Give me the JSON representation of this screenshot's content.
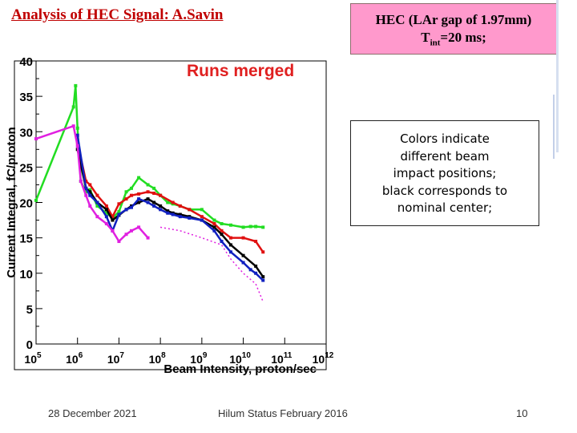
{
  "slide": {
    "title": "Analysis of HEC  Signal: A.Savin",
    "hec_box": {
      "line1": "HEC (LAr gap of 1.97mm)",
      "tint_base": "T",
      "tint_sub": "int",
      "tint_rest": "=20 ms;"
    },
    "note_lines": [
      "Colors indicate",
      "different beam",
      "impact positions;",
      "black corresponds to",
      "nominal center;"
    ],
    "footer": {
      "date": "28 December 2021",
      "center": "Hilum Status February 2016",
      "page": "10"
    }
  },
  "chart_data": {
    "type": "line",
    "title": "Runs merged",
    "xlabel": "Beam Intensity, proton/sec",
    "ylabel": "Current Integral, fC/proton",
    "xscale": "log",
    "xlim": [
      100000,
      1000000000000
    ],
    "ylim": [
      0,
      40
    ],
    "yticks": [
      0,
      5,
      10,
      15,
      20,
      25,
      30,
      35,
      40
    ],
    "xticks": [
      {
        "base": "10",
        "exp": "5",
        "value": 100000
      },
      {
        "base": "10",
        "exp": "6",
        "value": 1000000
      },
      {
        "base": "10",
        "exp": "7",
        "value": 10000000
      },
      {
        "base": "10",
        "exp": "8",
        "value": 100000000
      },
      {
        "base": "10",
        "exp": "9",
        "value": 1000000000
      },
      {
        "base": "10",
        "exp": "10",
        "value": 10000000000
      },
      {
        "base": "10",
        "exp": "11",
        "value": 100000000000
      },
      {
        "base": "10",
        "exp": "12",
        "value": 1000000000000
      }
    ],
    "title_color": "#e02020",
    "series": [
      {
        "color": "#22dd22",
        "style": "solid",
        "x": [
          100000,
          800000,
          900000,
          1000000,
          1200000,
          1600000,
          2000000,
          3000000,
          5000000,
          7000000,
          10000000,
          15000000,
          20000000,
          30000000,
          50000000,
          70000000,
          100000000,
          150000000,
          200000000,
          300000000,
          500000000,
          1000000000,
          2000000000,
          3000000000,
          5000000000,
          10000000000,
          15000000000,
          20000000000,
          30000000000
        ],
        "y": [
          20.3,
          33.5,
          36.5,
          30.5,
          23.0,
          21.5,
          21.8,
          19.5,
          18.5,
          17.8,
          18.7,
          21.5,
          22.0,
          23.5,
          22.5,
          22.0,
          21.0,
          20.0,
          19.8,
          19.5,
          19.0,
          19.0,
          17.5,
          17.0,
          16.8,
          16.5,
          16.6,
          16.6,
          16.5
        ]
      },
      {
        "color": "#e01010",
        "style": "solid",
        "x": [
          1000000,
          1600000,
          2000000,
          3000000,
          5000000,
          7000000,
          10000000,
          15000000,
          20000000,
          30000000,
          50000000,
          70000000,
          100000000,
          200000000,
          300000000,
          500000000,
          1000000000,
          2000000000,
          3000000000,
          5000000000,
          10000000000,
          20000000000,
          30000000000
        ],
        "y": [
          28.5,
          23.0,
          22.5,
          21.0,
          19.5,
          18.0,
          19.8,
          20.5,
          21.0,
          21.2,
          21.5,
          21.3,
          21.0,
          20.0,
          19.5,
          19.0,
          18.0,
          17.0,
          16.0,
          15.0,
          15.0,
          14.5,
          13.0
        ]
      },
      {
        "color": "#000000",
        "style": "solid",
        "x": [
          1000000,
          1600000,
          2000000,
          3000000,
          5000000,
          7000000,
          10000000,
          15000000,
          20000000,
          30000000,
          50000000,
          70000000,
          100000000,
          150000000,
          200000000,
          300000000,
          500000000,
          1000000000,
          2000000000,
          3000000000,
          5000000000,
          10000000000,
          20000000000,
          30000000000
        ],
        "y": [
          27.5,
          22.0,
          21.5,
          20.0,
          19.0,
          17.5,
          18.2,
          19.0,
          19.5,
          20.0,
          20.5,
          20.0,
          19.5,
          18.8,
          18.5,
          18.3,
          18.0,
          17.5,
          16.5,
          15.5,
          14.0,
          12.5,
          11.0,
          9.5
        ]
      },
      {
        "color": "#1020c0",
        "style": "solid",
        "x": [
          1000000,
          1600000,
          2000000,
          3000000,
          5000000,
          7000000,
          10000000,
          15000000,
          20000000,
          30000000,
          50000000,
          70000000,
          100000000,
          150000000,
          200000000,
          300000000,
          500000000,
          1000000000,
          2000000000,
          3000000000,
          5000000000,
          10000000000,
          15000000000,
          20000000000,
          30000000000
        ],
        "y": [
          29.5,
          22.0,
          21.0,
          20.0,
          18.0,
          16.0,
          18.3,
          19.0,
          19.3,
          20.5,
          20.0,
          19.5,
          19.0,
          18.5,
          18.3,
          18.0,
          17.8,
          17.5,
          16.0,
          14.5,
          13.0,
          11.5,
          10.5,
          10.0,
          9.0
        ]
      },
      {
        "color": "#e020e0",
        "style": "solid",
        "x": [
          100000,
          800000,
          1000000,
          1200000,
          1600000,
          2000000,
          3000000,
          5000000,
          7000000,
          10000000,
          15000000,
          20000000,
          30000000,
          50000000
        ],
        "y": [
          29.0,
          30.8,
          28.0,
          23.0,
          21.0,
          19.5,
          18.0,
          17.0,
          16.0,
          14.5,
          15.5,
          16.0,
          16.5,
          15.0
        ]
      },
      {
        "color": "#e020e0",
        "style": "dotted",
        "x": [
          100000000,
          300000000,
          1000000000,
          3000000000,
          5000000000,
          10000000000,
          20000000000,
          30000000000
        ],
        "y": [
          16.5,
          16.0,
          15.0,
          14.0,
          12.0,
          10.0,
          8.5,
          6.0
        ]
      }
    ]
  }
}
